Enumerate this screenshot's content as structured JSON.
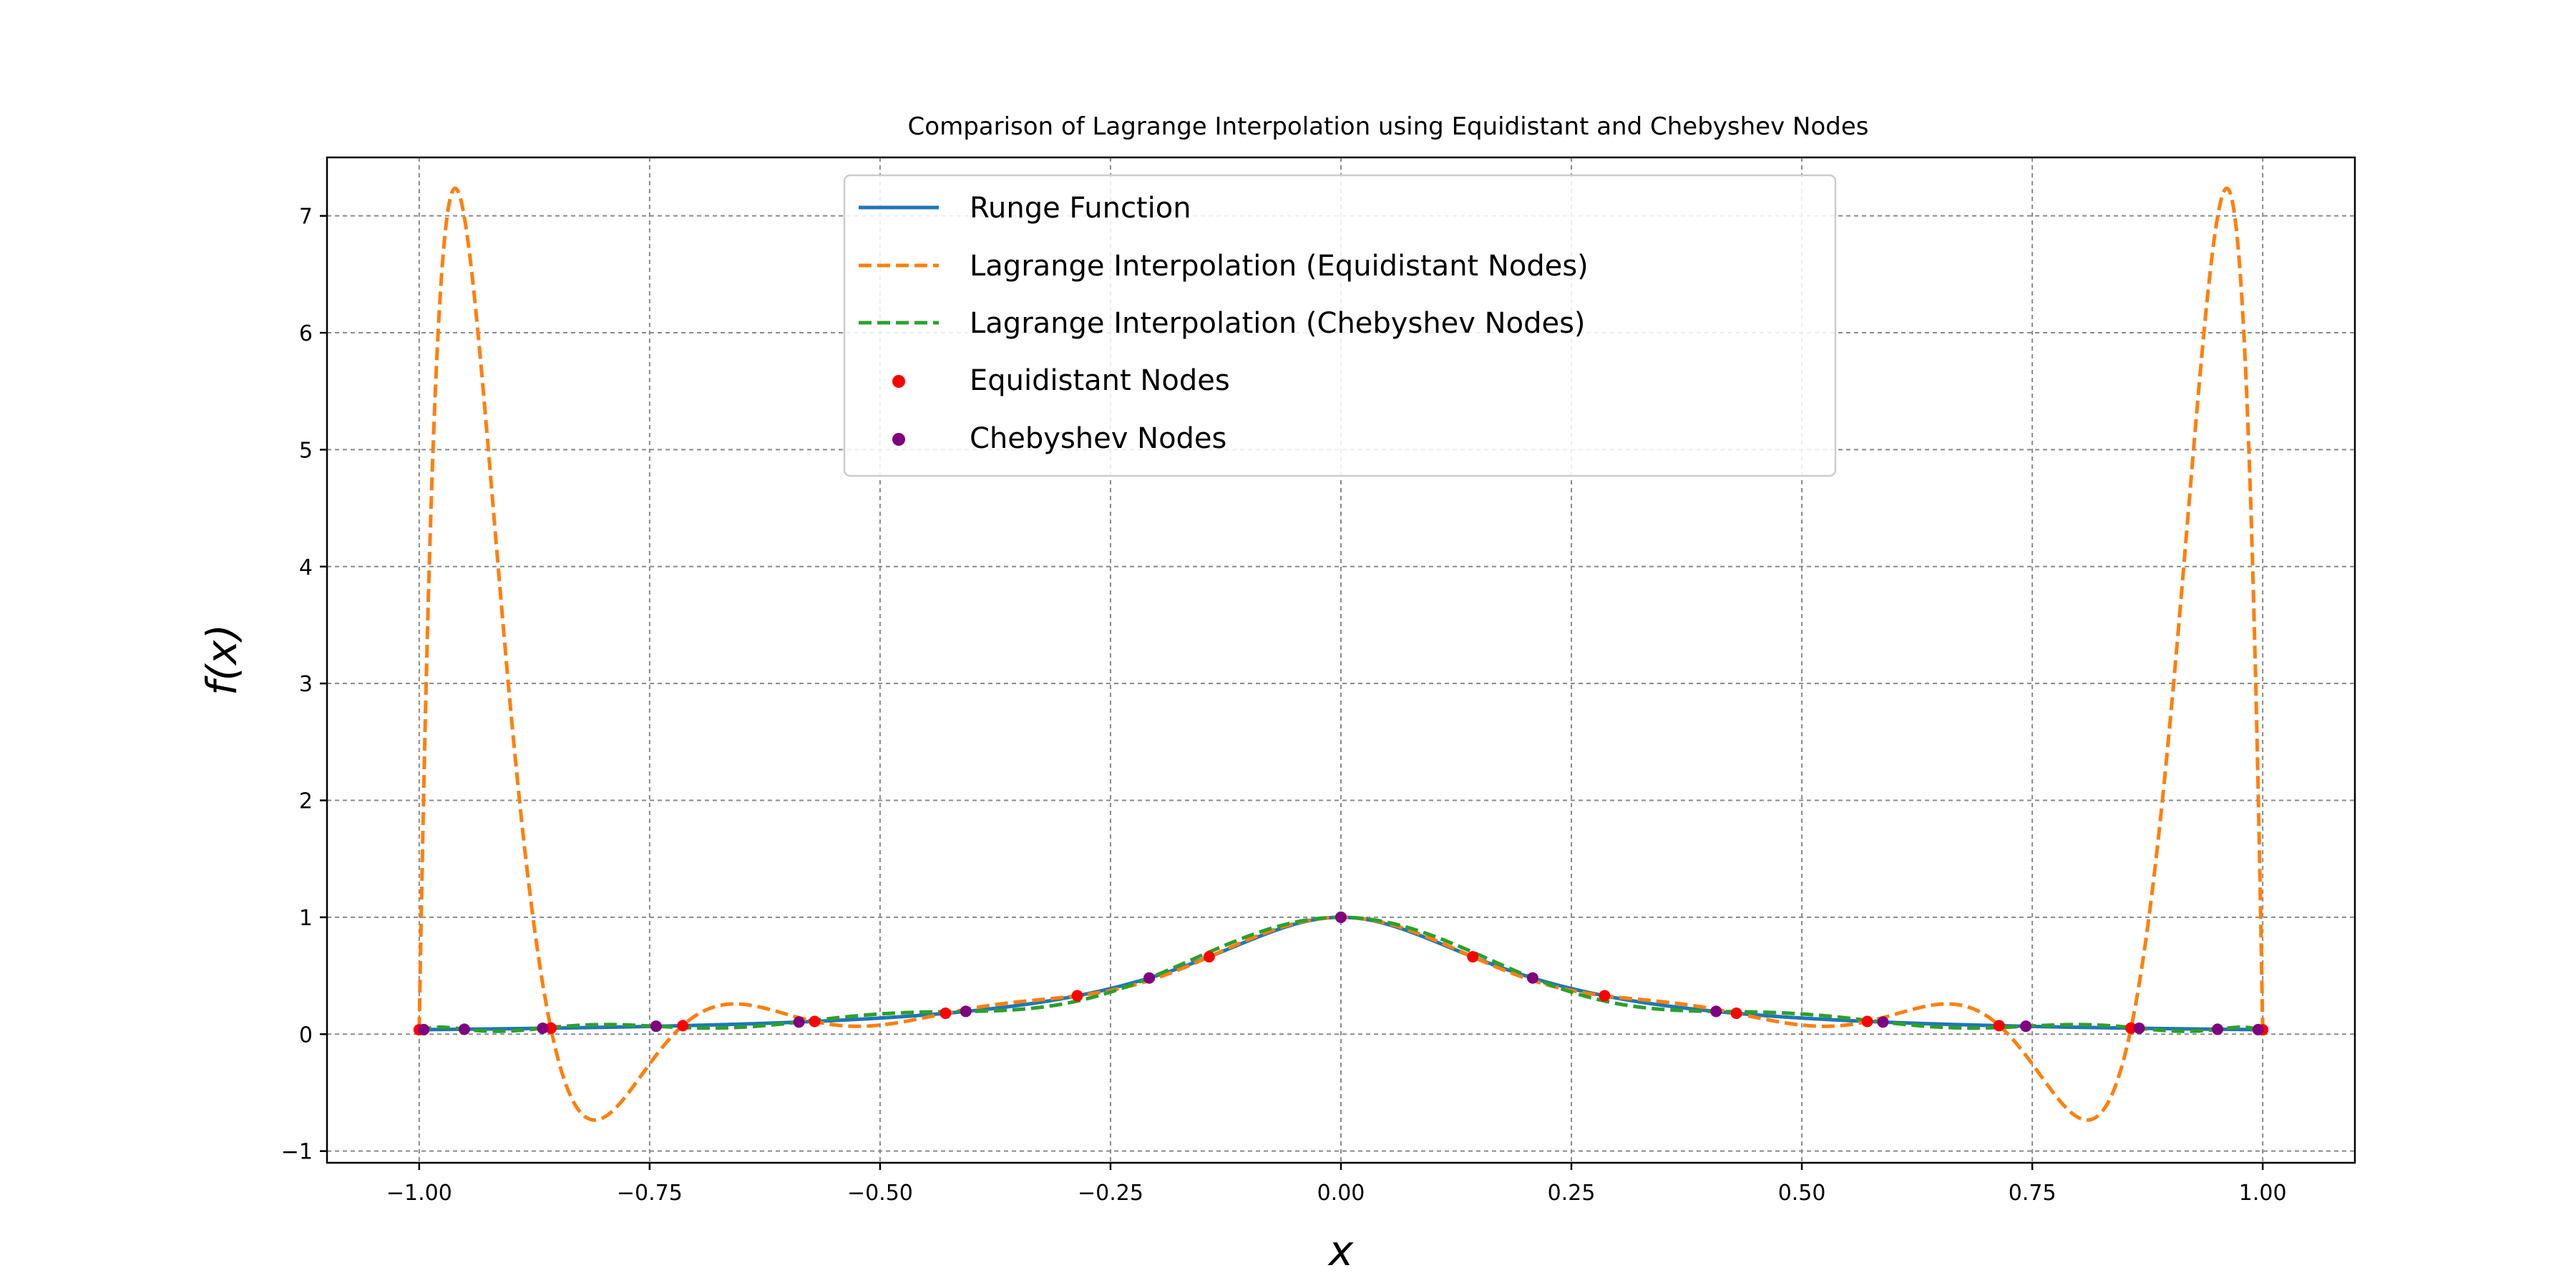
{
  "chart_data": {
    "type": "line",
    "title": "Comparison of Lagrange Interpolation using Equidistant and Chebyshev Nodes",
    "xlabel": "x",
    "ylabel": "f(x)",
    "xlim": [
      -1.1,
      1.1
    ],
    "ylim": [
      -1.1,
      7.5
    ],
    "xticks": [
      -1.0,
      -0.75,
      -0.5,
      -0.25,
      0.0,
      0.25,
      0.5,
      0.75,
      1.0
    ],
    "xtick_labels": [
      "−1.00",
      "−0.75",
      "−0.50",
      "−0.25",
      "0.00",
      "0.25",
      "0.50",
      "0.75",
      "1.00"
    ],
    "yticks": [
      -1,
      0,
      1,
      2,
      3,
      4,
      5,
      6,
      7
    ],
    "ytick_labels": [
      "−1",
      "0",
      "1",
      "2",
      "3",
      "4",
      "5",
      "6",
      "7"
    ],
    "grid": true,
    "legend_position": "top-center",
    "function": "1/(1+25x^2)",
    "n_nodes": 15,
    "series": [
      {
        "name": "Runge Function",
        "kind": "line",
        "style": "solid",
        "color": "#1f77b4"
      },
      {
        "name": "Lagrange Interpolation (Equidistant Nodes)",
        "kind": "line",
        "style": "dashed",
        "color": "#ff7f0e"
      },
      {
        "name": "Lagrange Interpolation (Chebyshev Nodes)",
        "kind": "line",
        "style": "dashed",
        "color": "#2ca02c"
      },
      {
        "name": "Equidistant Nodes",
        "kind": "scatter",
        "color": "#ff0000",
        "x": [
          -1.0,
          -0.857,
          -0.714,
          -0.571,
          -0.429,
          -0.286,
          -0.143,
          0.0,
          0.143,
          0.286,
          0.429,
          0.571,
          0.714,
          0.857,
          1.0
        ],
        "y": [
          0.038,
          0.052,
          0.073,
          0.109,
          0.179,
          0.329,
          0.662,
          1.0,
          0.662,
          0.329,
          0.179,
          0.109,
          0.073,
          0.052,
          0.038
        ]
      },
      {
        "name": "Chebyshev Nodes",
        "kind": "scatter",
        "color": "#800080",
        "x": [
          -0.995,
          -0.951,
          -0.866,
          -0.743,
          -0.588,
          -0.407,
          -0.208,
          0.0,
          0.208,
          0.407,
          0.588,
          0.743,
          0.866,
          0.951,
          0.995
        ],
        "y": [
          0.039,
          0.042,
          0.051,
          0.068,
          0.104,
          0.195,
          0.481,
          1.0,
          0.481,
          0.195,
          0.104,
          0.068,
          0.051,
          0.042,
          0.039
        ]
      }
    ]
  }
}
